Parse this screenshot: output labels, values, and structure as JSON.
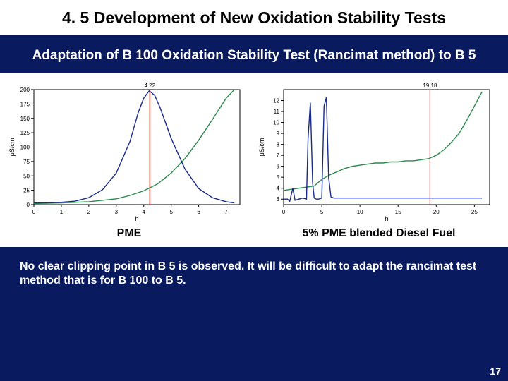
{
  "title": "4. 5 Development of New Oxidation Stability Tests",
  "subtitle": "Adaptation of B 100 Oxidation Stability Test (Rancimat method) to B 5",
  "conclusion": "No clear clipping point in B 5 is observed. It will be difficult to adapt the rancimat test method that is for B 100 to B 5.",
  "page_number": "17",
  "left_chart": {
    "type": "line",
    "caption": "PME",
    "xlabel": "h",
    "ylabel": "μS/cm",
    "xlim": [
      0,
      7.5
    ],
    "ylim": [
      0,
      200
    ],
    "xticks": [
      0,
      1,
      2,
      3,
      4,
      5,
      6,
      7
    ],
    "yticks": [
      0,
      25,
      50,
      75,
      100,
      125,
      150,
      175,
      200
    ],
    "marker_label": "4.22",
    "marker_x": 4.22,
    "background_color": "#ffffff",
    "axis_color": "#000000",
    "grid_color": "#ffffff",
    "tick_fontsize": 8,
    "label_fontsize": 9,
    "line_width": 1.4,
    "series_blue": {
      "color": "#1a2a8a",
      "x": [
        0.0,
        0.5,
        1.0,
        1.5,
        2.0,
        2.5,
        3.0,
        3.5,
        3.8,
        4.0,
        4.2,
        4.4,
        4.6,
        5.0,
        5.5,
        6.0,
        6.5,
        7.0,
        7.3
      ],
      "y": [
        3,
        3,
        4,
        6,
        12,
        26,
        55,
        110,
        160,
        185,
        198,
        190,
        168,
        115,
        62,
        28,
        12,
        5,
        3
      ]
    },
    "series_green": {
      "color": "#2a8a4a",
      "x": [
        0.0,
        1.0,
        2.0,
        3.0,
        3.5,
        4.0,
        4.5,
        5.0,
        5.5,
        6.0,
        6.5,
        7.0,
        7.3
      ],
      "y": [
        2,
        3,
        5,
        10,
        16,
        24,
        36,
        55,
        80,
        112,
        148,
        185,
        200
      ]
    },
    "vertical_line": {
      "color": "#cc0000",
      "x": 4.22
    }
  },
  "right_chart": {
    "type": "line",
    "caption": "5% PME blended Diesel Fuel",
    "xlabel": "h",
    "ylabel": "μS/cm",
    "xlim": [
      0,
      27
    ],
    "ylim": [
      2.5,
      13
    ],
    "xticks": [
      0,
      5,
      10,
      15,
      20,
      25
    ],
    "yticks": [
      3,
      4,
      5,
      6,
      7,
      8,
      9,
      10,
      11,
      12
    ],
    "marker_label": "19.18",
    "marker_x": 19.18,
    "background_color": "#ffffff",
    "axis_color": "#000000",
    "grid_color": "#ffffff",
    "tick_fontsize": 8,
    "label_fontsize": 9,
    "line_width": 1.4,
    "series_blue": {
      "color": "#1a2a8a",
      "x": [
        0.0,
        0.5,
        0.8,
        1.2,
        1.5,
        2.0,
        2.5,
        3.0,
        3.2,
        3.5,
        3.8,
        4.0,
        4.3,
        4.6,
        5.0,
        5.3,
        5.6,
        5.9,
        6.2,
        6.6,
        7.0,
        7.5,
        8.0,
        9.0,
        10.0,
        12.0,
        14.0,
        16.0,
        18.0,
        20.0,
        22.0,
        24.0,
        26.0
      ],
      "y": [
        3.0,
        3.0,
        2.8,
        4.0,
        2.9,
        3.0,
        3.1,
        3.0,
        8.5,
        11.8,
        4.5,
        3.1,
        3.0,
        3.0,
        3.1,
        11.5,
        12.3,
        5.0,
        3.2,
        3.1,
        3.1,
        3.1,
        3.1,
        3.1,
        3.1,
        3.1,
        3.1,
        3.1,
        3.1,
        3.1,
        3.1,
        3.1,
        3.1
      ]
    },
    "series_green": {
      "color": "#2a8a4a",
      "x": [
        0.0,
        2.0,
        4.0,
        5.0,
        6.0,
        7.0,
        8.0,
        9.0,
        10.0,
        11.0,
        12.0,
        13.0,
        14.0,
        15.0,
        16.0,
        17.0,
        18.0,
        19.0,
        20.0,
        21.0,
        22.0,
        23.0,
        24.0,
        25.0,
        26.0
      ],
      "y": [
        3.8,
        4.0,
        4.2,
        4.8,
        5.2,
        5.5,
        5.8,
        6.0,
        6.1,
        6.2,
        6.3,
        6.3,
        6.4,
        6.4,
        6.5,
        6.5,
        6.6,
        6.7,
        7.0,
        7.5,
        8.2,
        9.0,
        10.2,
        11.5,
        12.8
      ]
    },
    "vertical_line": {
      "color": "#cc0000",
      "x": 19.18
    }
  }
}
